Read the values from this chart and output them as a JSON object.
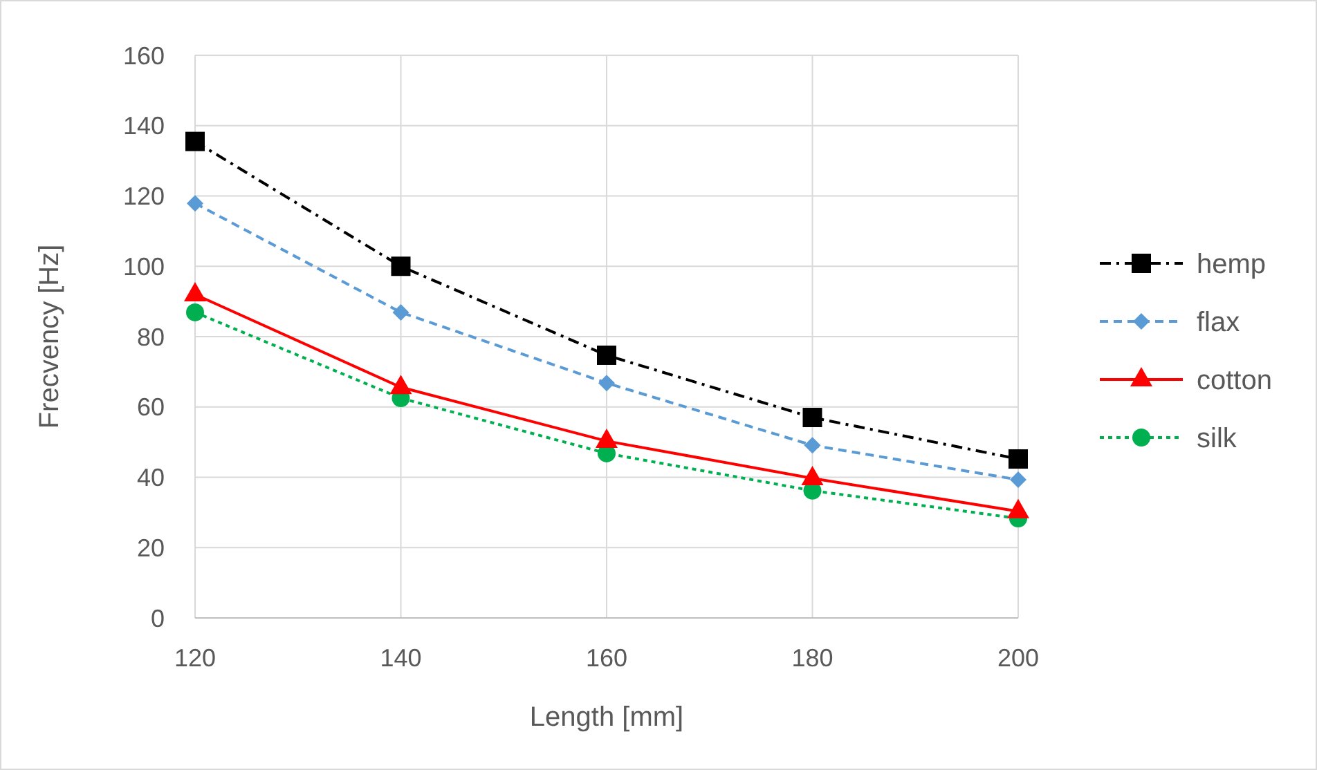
{
  "chart_data": {
    "type": "line",
    "xlabel": "Length [mm]",
    "ylabel": "Frecvency [Hz]",
    "x": [
      120,
      140,
      160,
      180,
      200
    ],
    "xlim": [
      120,
      200
    ],
    "xticks": [
      120,
      140,
      160,
      180,
      200
    ],
    "ylim": [
      0,
      160
    ],
    "yticks": [
      0,
      20,
      40,
      60,
      80,
      100,
      120,
      140,
      160
    ],
    "grid": true,
    "legend": "right",
    "series": [
      {
        "name": "hemp",
        "color": "#000000",
        "marker": "square",
        "line_style": "dashdot",
        "values": [
          135.5,
          100,
          74.7,
          57,
          45.2
        ]
      },
      {
        "name": "flax",
        "color": "#5b9bd5",
        "marker": "diamond",
        "line_style": "dashed",
        "values": [
          117.9,
          86.9,
          66.8,
          49.1,
          39.3
        ]
      },
      {
        "name": "cotton",
        "color": "#ff0000",
        "marker": "triangle",
        "line_style": "solid",
        "values": [
          92,
          65.6,
          50.3,
          39.7,
          30.3
        ]
      },
      {
        "name": "silk",
        "color": "#00b050",
        "marker": "circle",
        "line_style": "dotted",
        "values": [
          86.9,
          62.5,
          46.8,
          36.2,
          28.3
        ]
      }
    ]
  }
}
